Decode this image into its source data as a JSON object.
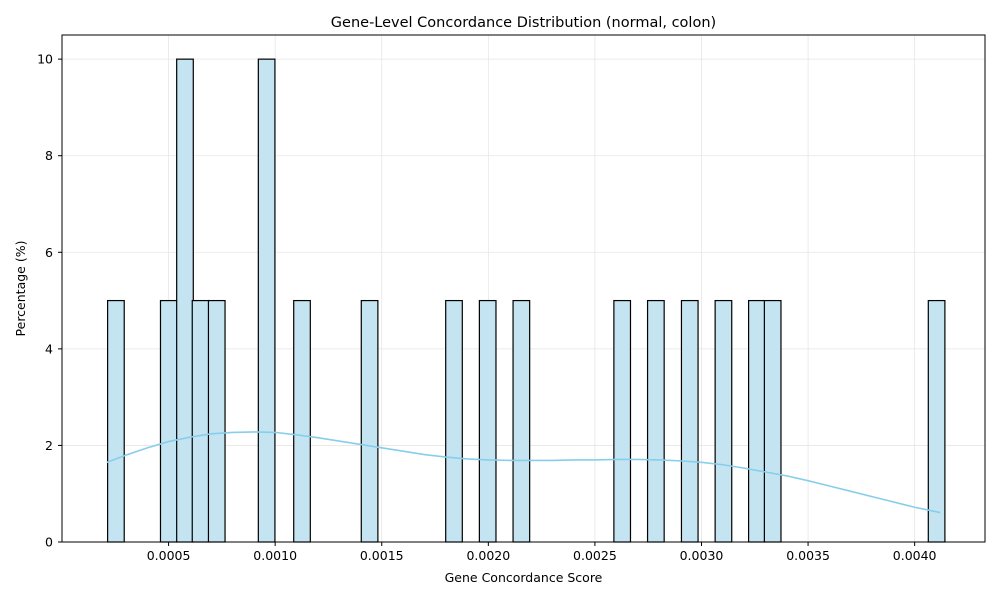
{
  "chart_data": {
    "type": "bar",
    "title": "Gene-Level Concordance Distribution (normal, colon)",
    "xlabel": "Gene Concordance Score",
    "ylabel": "Percentage (%)",
    "xlim": [
      0.0,
      0.00433
    ],
    "ylim": [
      0,
      10.5
    ],
    "grid": true,
    "bar_fill": "#c4e4f2",
    "bar_edge": "#000000",
    "kde_color": "#87ceeb",
    "grid_color": "#e6e6e6",
    "xticks": [
      "0.0005",
      "0.0010",
      "0.0015",
      "0.0020",
      "0.0025",
      "0.0030",
      "0.0035",
      "0.0040"
    ],
    "yticks": [
      "0",
      "2",
      "4",
      "6",
      "8",
      "10"
    ],
    "bin_width": 7.79e-05,
    "bins": [
      {
        "start": 0.000214,
        "value": 5
      },
      {
        "start": 0.000462,
        "value": 5
      },
      {
        "start": 0.000538,
        "value": 10
      },
      {
        "start": 0.000611,
        "value": 5
      },
      {
        "start": 0.000687,
        "value": 5
      },
      {
        "start": 0.000921,
        "value": 10
      },
      {
        "start": 0.001087,
        "value": 5
      },
      {
        "start": 0.001404,
        "value": 5
      },
      {
        "start": 0.0018,
        "value": 5
      },
      {
        "start": 0.001958,
        "value": 5
      },
      {
        "start": 0.002116,
        "value": 5
      },
      {
        "start": 0.002589,
        "value": 5
      },
      {
        "start": 0.002747,
        "value": 5
      },
      {
        "start": 0.002906,
        "value": 5
      },
      {
        "start": 0.003064,
        "value": 5
      },
      {
        "start": 0.003221,
        "value": 5
      },
      {
        "start": 0.003295,
        "value": 5
      },
      {
        "start": 0.004064,
        "value": 5
      }
    ],
    "kde": {
      "x": [
        0.00021,
        0.0003,
        0.0004,
        0.0005,
        0.0006,
        0.0007,
        0.0008,
        0.0009,
        0.001,
        0.0011,
        0.0012,
        0.0013,
        0.0014,
        0.0015,
        0.0016,
        0.0017,
        0.0018,
        0.0019,
        0.002,
        0.0021,
        0.0022,
        0.0023,
        0.0024,
        0.0025,
        0.0026,
        0.0027,
        0.0028,
        0.0029,
        0.003,
        0.0031,
        0.0032,
        0.0033,
        0.0034,
        0.0035,
        0.0036,
        0.0037,
        0.0038,
        0.0039,
        0.004,
        0.00412
      ],
      "y": [
        1.65,
        1.8,
        1.95,
        2.08,
        2.17,
        2.24,
        2.27,
        2.28,
        2.27,
        2.22,
        2.16,
        2.09,
        2.02,
        1.95,
        1.88,
        1.81,
        1.76,
        1.72,
        1.7,
        1.69,
        1.69,
        1.69,
        1.7,
        1.7,
        1.71,
        1.71,
        1.7,
        1.68,
        1.65,
        1.6,
        1.53,
        1.45,
        1.37,
        1.27,
        1.16,
        1.05,
        0.94,
        0.83,
        0.72,
        0.61
      ]
    }
  }
}
